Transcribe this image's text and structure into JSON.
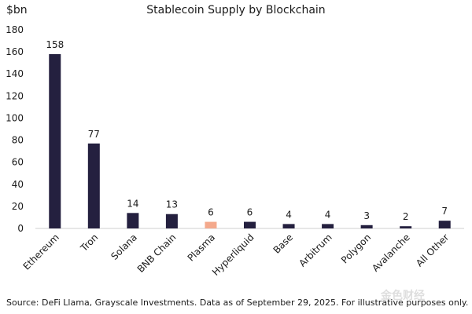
{
  "chart_data": {
    "type": "bar",
    "title": "Stablecoin Supply by Blockchain",
    "ylabel": "$bn",
    "xlabel": "",
    "ylim": [
      0,
      180
    ],
    "yticks": [
      0,
      20,
      40,
      60,
      80,
      100,
      120,
      140,
      160,
      180
    ],
    "grid": false,
    "categories": [
      "Ethereum",
      "Tron",
      "Solana",
      "BNB Chain",
      "Plasma",
      "Hyperliquid",
      "Base",
      "Arbitrum",
      "Polygon",
      "Avalanche",
      "All Other"
    ],
    "values": [
      158,
      77,
      14,
      13,
      6,
      6,
      4,
      4,
      3,
      2,
      7
    ],
    "data_labels": [
      "158",
      "77",
      "14",
      "13",
      "6",
      "6",
      "4",
      "4",
      "3",
      "2",
      "7"
    ],
    "bar_color": "#24203f",
    "highlight_color": "#f4a98c",
    "highlight_category": "Plasma",
    "source": "Source: DeFi Llama, Grayscale Investments. Data as of September 29, 2025. For illustrative purposes only."
  },
  "watermark": "金色财经"
}
